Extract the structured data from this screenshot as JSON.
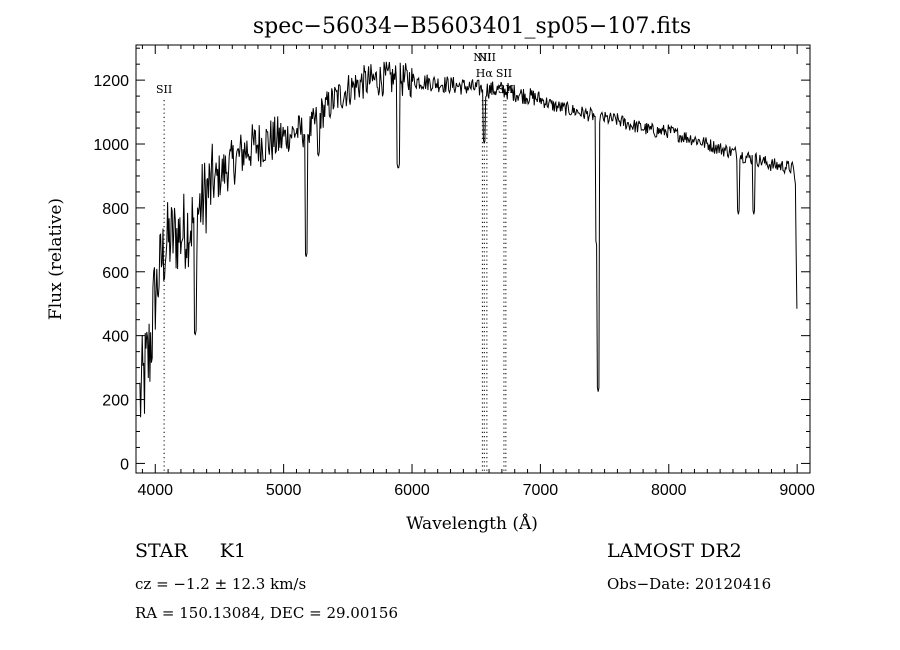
{
  "chart_data": {
    "type": "line",
    "title": "spec−56034−B5603401_sp05−107.fits",
    "xlabel": "Wavelength (Å)",
    "ylabel": "Flux (relative)",
    "xlim": [
      3850,
      9100
    ],
    "ylim": [
      -30,
      1310
    ],
    "xticks": [
      4000,
      5000,
      6000,
      7000,
      8000,
      9000
    ],
    "yticks": [
      0,
      200,
      400,
      600,
      800,
      1000,
      1200
    ],
    "grid": false,
    "series": [
      {
        "continuum": [
          [
            3880,
            200
          ],
          [
            3950,
            330
          ],
          [
            4000,
            520
          ],
          [
            4050,
            640
          ],
          [
            4100,
            700
          ],
          [
            4200,
            720
          ],
          [
            4300,
            760
          ],
          [
            4400,
            850
          ],
          [
            4500,
            900
          ],
          [
            4600,
            940
          ],
          [
            4700,
            980
          ],
          [
            4800,
            1000
          ],
          [
            4900,
            1010
          ],
          [
            5000,
            1020
          ],
          [
            5100,
            1040
          ],
          [
            5200,
            1040
          ],
          [
            5300,
            1100
          ],
          [
            5400,
            1140
          ],
          [
            5500,
            1170
          ],
          [
            5600,
            1190
          ],
          [
            5700,
            1200
          ],
          [
            5800,
            1205
          ],
          [
            5900,
            1200
          ],
          [
            6000,
            1200
          ],
          [
            6100,
            1195
          ],
          [
            6200,
            1190
          ],
          [
            6300,
            1185
          ],
          [
            6400,
            1180
          ],
          [
            6500,
            1175
          ],
          [
            6600,
            1170
          ],
          [
            6700,
            1170
          ],
          [
            6800,
            1160
          ],
          [
            6900,
            1150
          ],
          [
            7000,
            1140
          ],
          [
            7100,
            1120
          ],
          [
            7200,
            1110
          ],
          [
            7300,
            1100
          ],
          [
            7400,
            1090
          ],
          [
            7500,
            1080
          ],
          [
            7600,
            1075
          ],
          [
            7700,
            1060
          ],
          [
            7800,
            1050
          ],
          [
            7900,
            1040
          ],
          [
            8000,
            1040
          ],
          [
            8100,
            1025
          ],
          [
            8200,
            1015
          ],
          [
            8300,
            1000
          ],
          [
            8400,
            985
          ],
          [
            8500,
            975
          ],
          [
            8600,
            960
          ],
          [
            8700,
            950
          ],
          [
            8800,
            935
          ],
          [
            8900,
            930
          ],
          [
            8960,
            925
          ],
          [
            8985,
            900
          ],
          [
            9000,
            420
          ]
        ],
        "absorption_features": [
          {
            "wavelength": 4310,
            "min": 400
          },
          {
            "wavelength": 5175,
            "min": 645
          },
          {
            "wavelength": 5270,
            "min": 960
          },
          {
            "wavelength": 5893,
            "min": 920
          },
          {
            "wavelength": 6563,
            "min": 1000
          },
          {
            "wavelength": 7440,
            "min": 680
          },
          {
            "wavelength": 7450,
            "min": 225
          },
          {
            "wavelength": 8542,
            "min": 780
          },
          {
            "wavelength": 8662,
            "min": 780
          }
        ]
      }
    ],
    "line_markers": [
      {
        "label": "SII",
        "wavelength": 4069
      },
      {
        "label": "NII",
        "wavelength": 6548
      },
      {
        "label": "Hα",
        "wavelength": 6563
      },
      {
        "label": "NII",
        "wavelength": 6583
      },
      {
        "label": "SII",
        "wavelength": 6716
      },
      {
        "label": "SII",
        "wavelength": 6731
      }
    ]
  },
  "info": {
    "object_class": "STAR",
    "subclass": "K1",
    "survey": "LAMOST DR2",
    "redshift_text": "cz = −1.2 ± 12.3 km/s",
    "obs_date": "Obs−Date: 20120416",
    "coords": "RA = 150.13084, DEC =  29.00156"
  }
}
